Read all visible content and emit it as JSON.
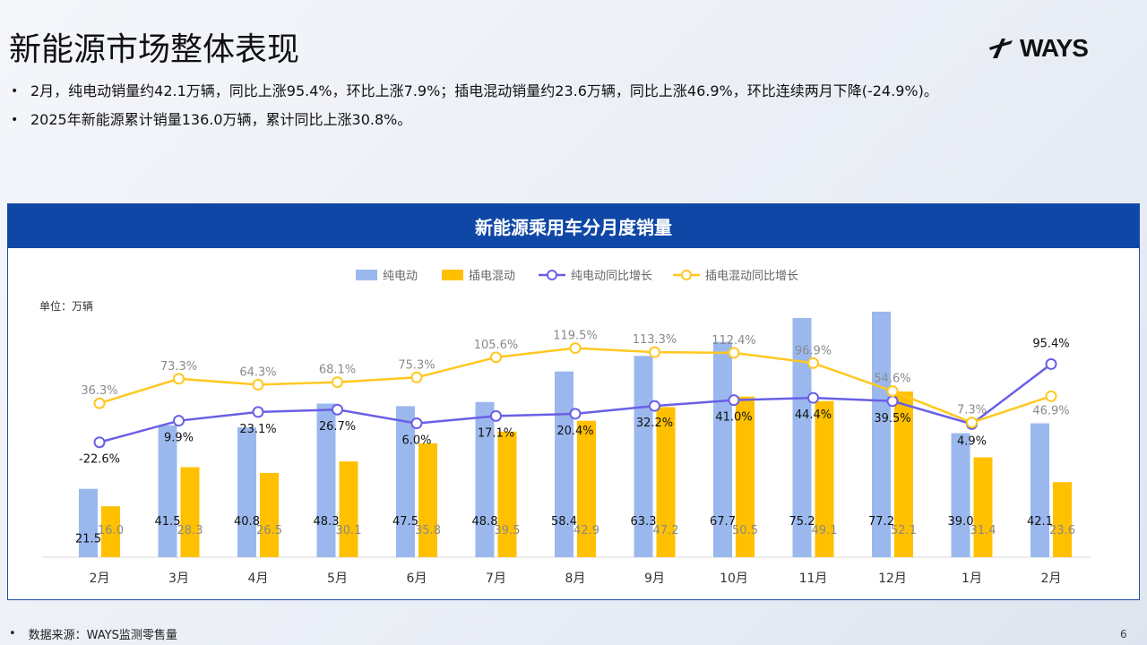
{
  "page": {
    "title": "新能源市场整体表现",
    "logo_text": "WAYS",
    "bullets": [
      "2月，纯电动销量约42.1万辆，同比上涨95.4%，环比上涨7.9%；插电混动销量约23.6万辆，同比上涨46.9%，环比连续两月下降(-24.9%)。",
      "2025年新能源累计销量136.0万辆，累计同比上涨30.8%。"
    ],
    "footer": "数据来源：WAYS监测零售量",
    "page_number": "6"
  },
  "chart_data": {
    "type": "bar",
    "title": "新能源乘用车分月度销量",
    "unit_label": "单位：万辆",
    "categories": [
      "2月",
      "3月",
      "4月",
      "5月",
      "6月",
      "7月",
      "8月",
      "9月",
      "10月",
      "11月",
      "12月",
      "1月",
      "2月"
    ],
    "series": [
      {
        "name": "纯电动",
        "kind": "bar",
        "color": "#9ab8ee",
        "values": [
          21.5,
          41.5,
          40.8,
          48.3,
          47.5,
          48.8,
          58.4,
          63.3,
          67.7,
          75.2,
          77.2,
          39.0,
          42.1
        ]
      },
      {
        "name": "插电混动",
        "kind": "bar",
        "color": "#ffc000",
        "values": [
          16.0,
          28.3,
          26.5,
          30.1,
          35.8,
          39.5,
          42.9,
          47.2,
          50.5,
          49.1,
          52.1,
          31.4,
          23.6
        ]
      },
      {
        "name": "纯电动同比增长",
        "kind": "line",
        "color": "#6a5fe6",
        "values": [
          -22.6,
          9.9,
          23.1,
          26.7,
          6.0,
          17.1,
          20.4,
          32.2,
          41.0,
          44.4,
          39.5,
          4.9,
          95.4
        ],
        "labels": [
          "-22.6%",
          "9.9%",
          "23.1%",
          "26.7%",
          "6.0%",
          "17.1%",
          "20.4%",
          "32.2%",
          "41.0%",
          "44.4%",
          "39.5%",
          "4.9%",
          "95.4%"
        ]
      },
      {
        "name": "插电混动同比增长",
        "kind": "line",
        "color": "#ffc820",
        "values": [
          36.3,
          73.3,
          64.3,
          68.1,
          75.3,
          105.6,
          119.5,
          113.3,
          112.4,
          96.9,
          54.6,
          7.3,
          46.9
        ],
        "labels": [
          "36.3%",
          "73.3%",
          "64.3%",
          "68.1%",
          "75.3%",
          "105.6%",
          "119.5%",
          "113.3%",
          "112.4%",
          "96.9%",
          "54.6%",
          "7.3%",
          "46.9%"
        ]
      }
    ],
    "legend_position": "top-center",
    "grid": false
  }
}
